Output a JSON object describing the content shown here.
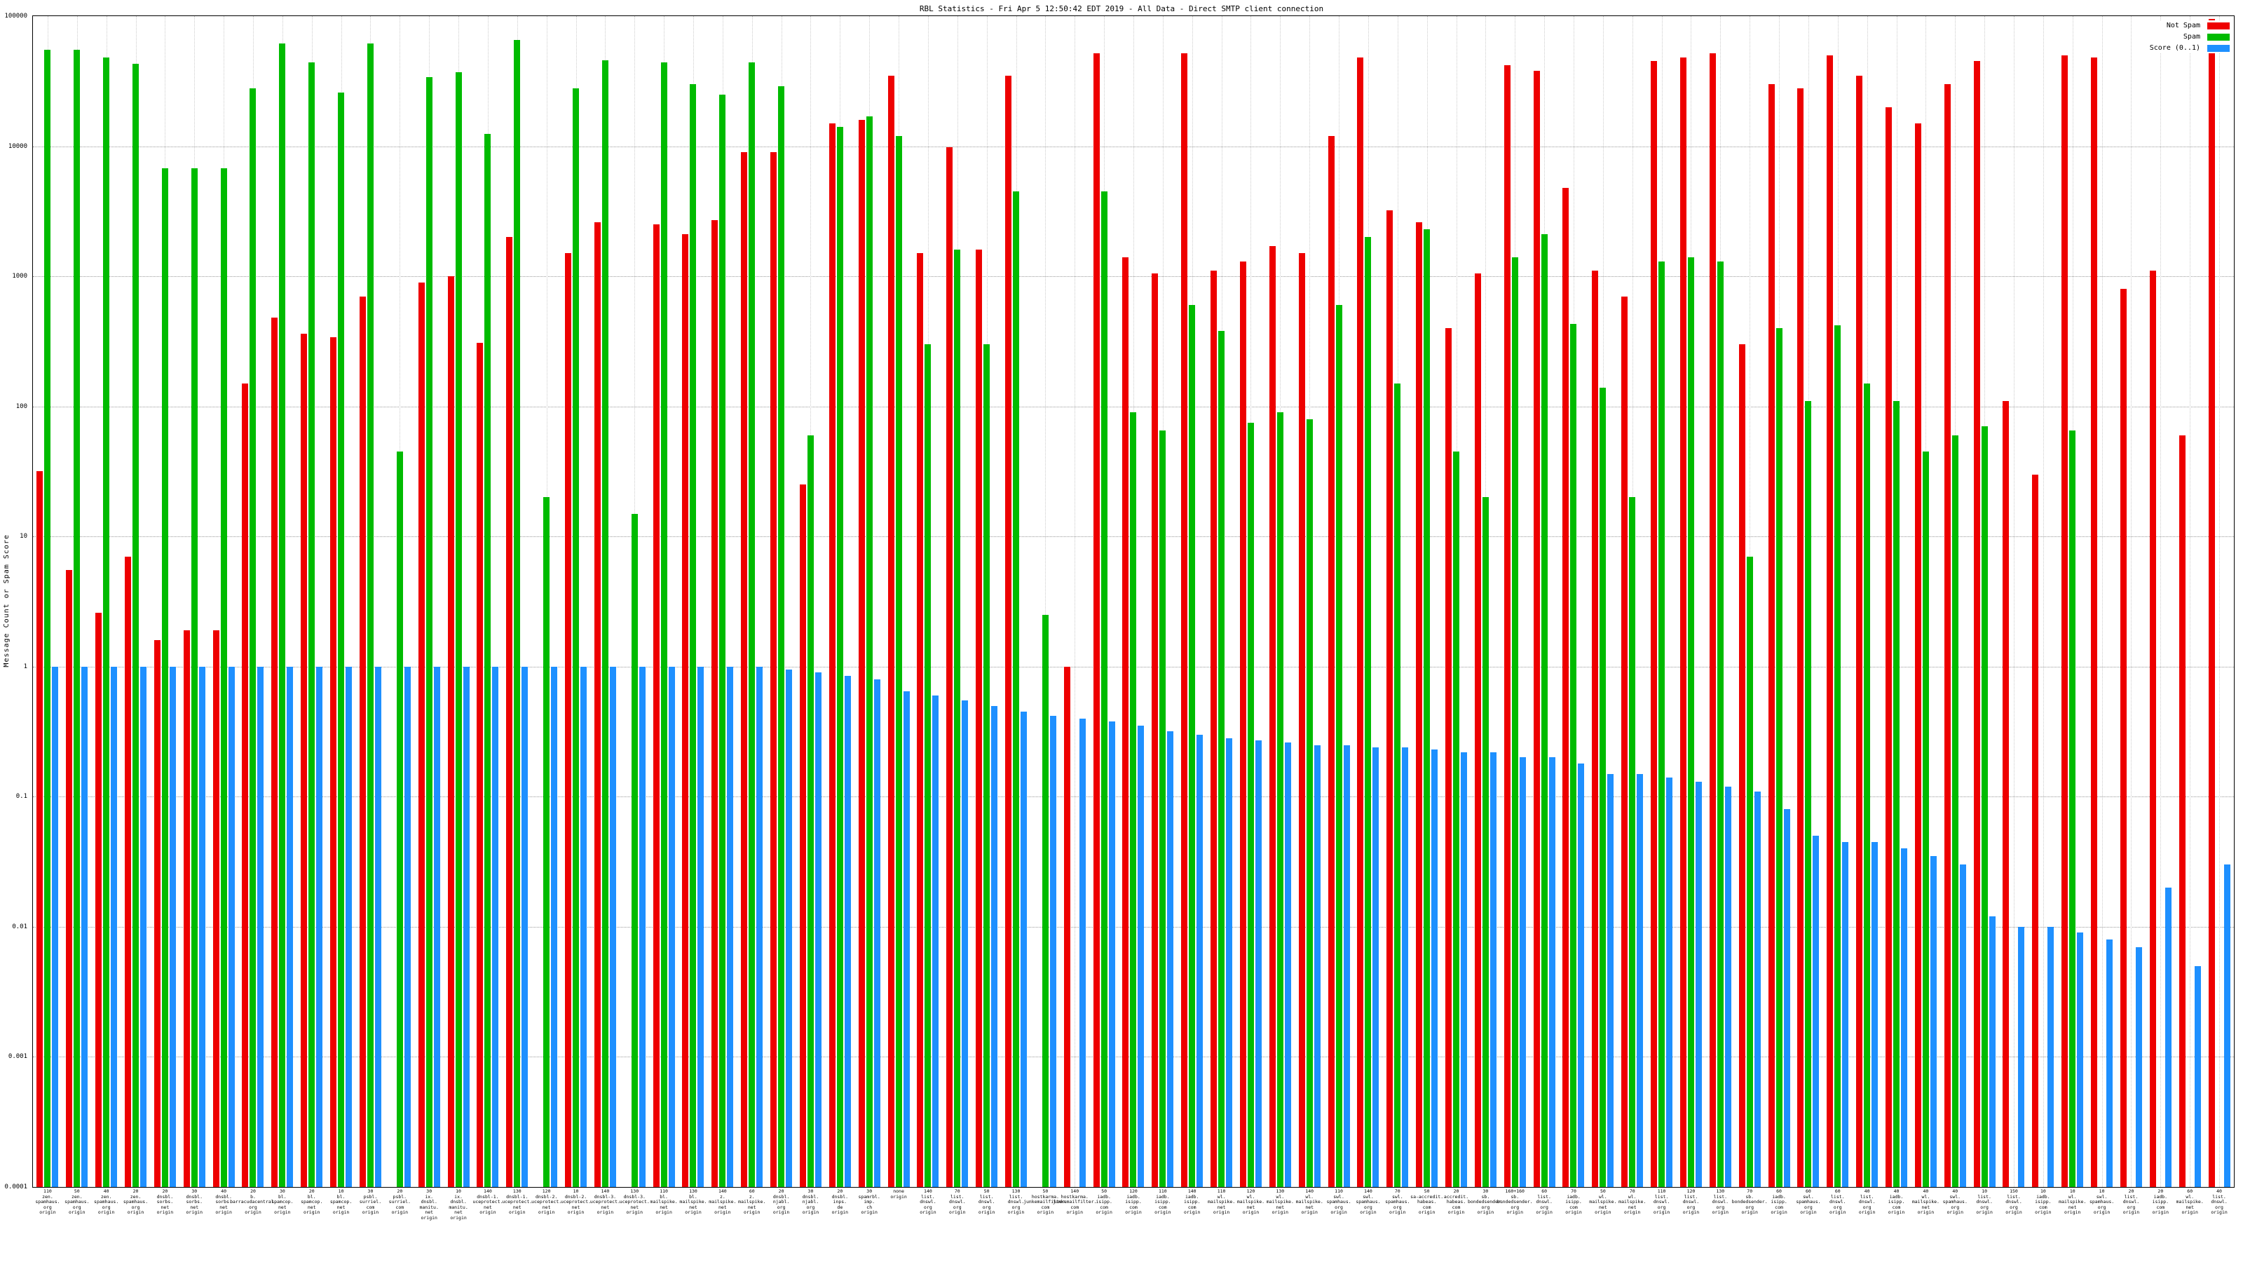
{
  "chart_data": {
    "type": "bar",
    "title": "RBL Statistics - Fri Apr  5 12:50:42 EDT 2019 - All Data - Direct SMTP client connection",
    "ylabel": "Message Count or Spam Score",
    "y_scale": "log",
    "ylim": [
      0.0001,
      100000
    ],
    "grid": true,
    "legend_position": "top-right",
    "y_ticks": [
      "100000",
      "10000",
      "1000",
      "100",
      "10",
      "1",
      "0.1",
      "0.01",
      "0.001",
      "0.0001"
    ],
    "categories": [
      "110 zen. spamhaus. org origin",
      "50 zen. spamhaus. org origin",
      "40 zen. spamhaus. org origin",
      "20 zen. spamhaus. org origin",
      "20 dnsbl. sorbs. net origin",
      "30 dnsbl. sorbs. net origin",
      "40 dnsbl. sorbs. net origin",
      "20 b. barracudacentral. org origin",
      "30 bl. spamcop. net origin",
      "20 bl. spamcop. net origin",
      "10 bl. spamcop. net origin",
      "30 psbl. surriel. com origin",
      "20 psbl. surriel. com origin",
      "30 ix. dnsbl. manitu. net origin",
      "10 ix. dnsbl. manitu. net origin",
      "140 dnsbl-1. uceprotect. net origin",
      "130 dnsbl-1. uceprotect. net origin",
      "120 dnsbl-2. uceprotect. net origin",
      "10 dnsbl-2. uceprotect. net origin",
      "140 dnsbl-3. uceprotect. net origin",
      "130 dnsbl-3. uceprotect. net origin",
      "110 bl. mailspike. net origin",
      "130 bl. mailspike. net origin",
      "140 z. mailspike. net origin",
      "60 z. mailspike. net origin",
      "20 dnsbl. njabl. org origin",
      "30 dnsbl. njabl. org origin",
      "20 dnsbl. inps. de origin",
      "30 spamrbl. imp. ch origin",
      "none origin",
      "140 list. dnswl. org origin",
      "70 list. dnswl. org origin",
      "50 list. dnswl. org origin",
      "130 list. dnswl. org origin",
      "50 hostkarma. junkemailfilter. com origin",
      "140 hostkarma. junkemailfilter. com origin",
      "50 iadb. isipp. com origin",
      "120 iadb. isipp. com origin",
      "110 iadb. isipp. com origin",
      "140 iadb. isipp. com origin",
      "110 wl. mailspike. net origin",
      "120 wl. mailspike. net origin",
      "130 wl. mailspike. net origin",
      "140 wl. mailspike. net origin",
      "110 swl. spamhaus. org origin",
      "140 swl. spamhaus. org origin",
      "70 swl. spamhaus. org origin",
      "50 sa-accredit. habeas. com origin",
      "20 accredit. habeas. com origin",
      "30 sb. bondedsender. org origin",
      "160+160 sb. bondedsender. org origin",
      "60 list. dnswl. org origin",
      "70 iadb. isipp. com origin",
      "50 wl. mailspike. net origin",
      "70 wl. mailspike. net origin",
      "110 list. dnswl. org origin",
      "120 list. dnswl. org origin",
      "130 list. dnswl. org origin",
      "70 sb. bondedsender. org origin",
      "60 iadb. isipp. com origin",
      "60 swl. spamhaus. org origin",
      "60 list. dnswl. org origin",
      "40 list. dnswl. org origin",
      "40 iadb. isipp. com origin",
      "40 wl. mailspike. net origin",
      "40 swl. spamhaus. org origin",
      "10 list. dnswl. org origin",
      "150 list. dnswl. org origin",
      "10 iadb. isipp. com origin",
      "10 wl. mailspike. net origin",
      "10 swl. spamhaus. org origin",
      "20 list. dnswl. org origin",
      "20 iadb. isipp. com origin",
      "60 wl. mailspike. net origin",
      "40 list. dnswl. org origin"
    ],
    "series": [
      {
        "name": "Not Spam",
        "key": "not-spam",
        "color": "#ee0000",
        "values": [
          32,
          5.5,
          2.6,
          7,
          1.6,
          1.9,
          1.9,
          150,
          480,
          360,
          340,
          700,
          0,
          900,
          1000,
          310,
          2000,
          0,
          1500,
          2600,
          0,
          2500,
          2100,
          2700,
          9000,
          9000,
          25,
          15000,
          16000,
          35000,
          1500,
          9800,
          1600,
          35000,
          0,
          1,
          52000,
          1400,
          1050,
          52000,
          1100,
          1300,
          1700,
          1500,
          12000,
          48000,
          3200,
          2600,
          400,
          1050,
          42000,
          38000,
          4800,
          1100,
          700,
          45000,
          48000,
          52000,
          300,
          30000,
          28000,
          50000,
          35000,
          20000,
          15000,
          30000,
          45000,
          110,
          30,
          50000,
          48000,
          800,
          1100,
          60,
          95000
        ]
      },
      {
        "name": "Spam",
        "key": "spam",
        "color": "#00bb00",
        "values": [
          55000,
          55000,
          48000,
          43000,
          6800,
          6800,
          6800,
          28000,
          62000,
          44000,
          26000,
          62000,
          45,
          34000,
          37000,
          12500,
          66000,
          20,
          28000,
          46000,
          15,
          44000,
          30000,
          25000,
          44000,
          29000,
          60,
          14000,
          17000,
          12000,
          300,
          1600,
          300,
          4500,
          2.5,
          0,
          4500,
          90,
          65,
          600,
          380,
          75,
          90,
          80,
          600,
          2000,
          150,
          2300,
          45,
          20,
          1400,
          2100,
          430,
          140,
          20,
          1300,
          1400,
          1300,
          7,
          400,
          110,
          420,
          150,
          110,
          45,
          60,
          70,
          0,
          0,
          65,
          0,
          0,
          0,
          0,
          0
        ]
      },
      {
        "name": "Score (0..1)",
        "key": "score",
        "color": "#1e90ff",
        "values": [
          1,
          1,
          1,
          1,
          1,
          1,
          1,
          1,
          1,
          1,
          1,
          1,
          1,
          1,
          1,
          1,
          1,
          1,
          1,
          1,
          1,
          1,
          1,
          1,
          1,
          0.95,
          0.9,
          0.85,
          0.8,
          0.65,
          0.6,
          0.55,
          0.5,
          0.45,
          0.42,
          0.4,
          0.38,
          0.35,
          0.32,
          0.3,
          0.28,
          0.27,
          0.26,
          0.25,
          0.25,
          0.24,
          0.24,
          0.23,
          0.22,
          0.22,
          0.2,
          0.2,
          0.18,
          0.15,
          0.15,
          0.14,
          0.13,
          0.12,
          0.11,
          0.08,
          0.05,
          0.045,
          0.045,
          0.04,
          0.035,
          0.03,
          0.012,
          0.01,
          0.01,
          0.009,
          0.008,
          0.007,
          0.02,
          0.005,
          0.03
        ]
      }
    ]
  }
}
